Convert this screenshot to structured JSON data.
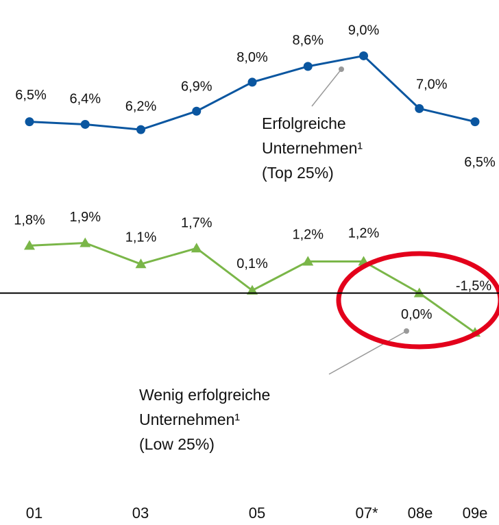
{
  "chart_data": {
    "type": "line",
    "categories": [
      "01",
      null,
      "03",
      null,
      "05",
      null,
      "07*",
      "08e",
      "09e"
    ],
    "ylim": [
      -3,
      10
    ],
    "grid": false,
    "zero_line": true,
    "series": [
      {
        "color": "#0a56a0",
        "marker": "circle",
        "values": [
          6.5,
          6.4,
          6.2,
          6.9,
          8.0,
          8.6,
          9.0,
          7.0,
          6.5
        ],
        "value_labels": [
          "6,5%",
          "6,4%",
          "6,2%",
          "6,9%",
          "8,0%",
          "8,6%",
          "9,0%",
          "7,0%",
          "6,5%"
        ]
      },
      {
        "color": "#7ab648",
        "marker": "triangle",
        "values": [
          1.8,
          1.9,
          1.1,
          1.7,
          0.1,
          1.2,
          1.2,
          0.0,
          -1.5
        ],
        "value_labels": [
          "1,8%",
          "1,9%",
          "1,1%",
          "1,7%",
          "0,1%",
          "1,2%",
          "1,2%",
          "0,0%",
          "-1,5%"
        ]
      }
    ],
    "annotations": [
      {
        "lines": [
          "Erfolgreiche",
          "Unternehmen¹",
          "(Top 25%)"
        ]
      },
      {
        "lines": [
          "Wenig erfolgreiche",
          "Unternehmen¹",
          "(Low 25%)"
        ]
      }
    ]
  }
}
